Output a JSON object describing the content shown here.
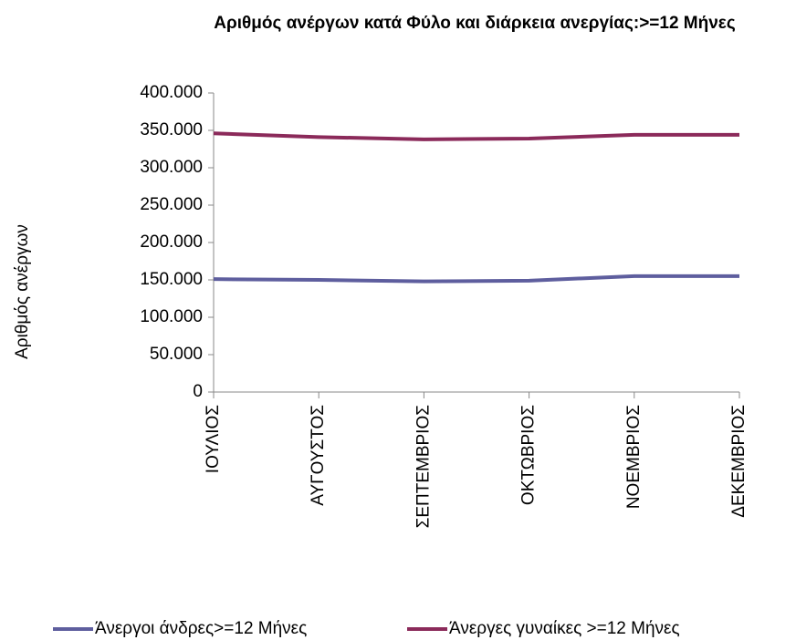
{
  "chart_data": {
    "type": "line",
    "title": "Αριθμός ανέργων κατά Φύλο και διάρκεια ανεργίας:>=12 Μήνες",
    "y_label": "Αριθμός ανέργων",
    "categories": [
      "ΙΟΥΛΙΟΣ",
      "ΑΥΓΟΥΣΤΟΣ",
      "ΣΕΠΤΕΜΒΡΙΟΣ",
      "ΟΚΤΩΒΡΙΟΣ",
      "ΝΟΕΜΒΡΙΟΣ",
      "ΔΕΚΕΜΒΡΙΟΣ"
    ],
    "series": [
      {
        "name": "Άνεργοι άνδρες>=12 Μήνες",
        "color": "#5e5e9e",
        "values": [
          151000,
          150000,
          148000,
          149000,
          155000,
          155000
        ]
      },
      {
        "name": "Άνεργες γυναίκες >=12 Μήνες",
        "color": "#8b2a5a",
        "values": [
          346000,
          341000,
          338000,
          339000,
          344000,
          344000
        ]
      }
    ],
    "ylim": [
      0,
      400000
    ],
    "yticks": [
      0,
      {
        "value": 50000,
        "label": "50.000"
      },
      {
        "value": 100000,
        "label": "100.000"
      },
      {
        "value": 150000,
        "label": "150.000"
      },
      {
        "value": 200000,
        "label": "200.000"
      },
      {
        "value": 250000,
        "label": "250.000"
      },
      {
        "value": 300000,
        "label": "300.000"
      },
      {
        "value": 350000,
        "label": "350.000"
      },
      {
        "value": 400000,
        "label": "400.000"
      }
    ],
    "grid": false,
    "legend": "bottom"
  }
}
